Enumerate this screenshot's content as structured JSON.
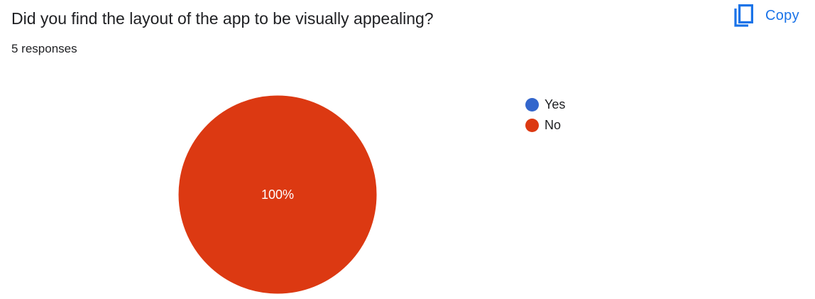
{
  "question": {
    "title": "Did you find the layout of the app to be visually appealing?",
    "responses": "5 responses"
  },
  "toolbar": {
    "copy_label": "Copy",
    "copy_icon": "copy-icon",
    "accent_color": "#1a73e8"
  },
  "chart_data": {
    "type": "pie",
    "title": "",
    "legend_position": "right",
    "categories": [
      "Yes",
      "No"
    ],
    "values": [
      0,
      100
    ],
    "colors": [
      "#3366cc",
      "#dc3912"
    ],
    "slice_labels": [
      "",
      "100%"
    ]
  }
}
